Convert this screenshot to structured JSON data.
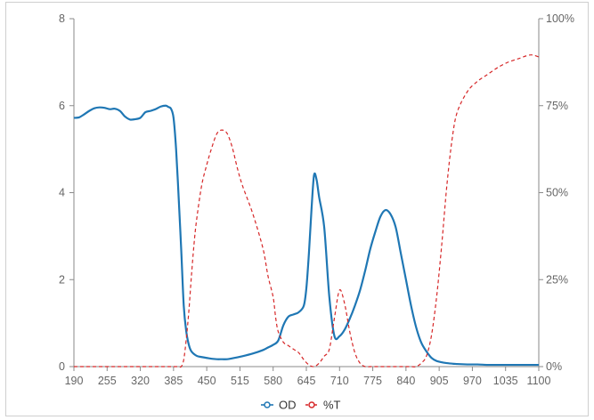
{
  "chart_data": {
    "type": "line",
    "x_ticks": [
      "190",
      "255",
      "320",
      "385",
      "450",
      "515",
      "580",
      "645",
      "710",
      "775",
      "840",
      "905",
      "970",
      "1035",
      "1100"
    ],
    "xlim": [
      190,
      1100
    ],
    "y_left": {
      "ticks": [
        "0",
        "2",
        "4",
        "6",
        "8"
      ],
      "lim": [
        0,
        8
      ]
    },
    "y_right": {
      "ticks": [
        "0%",
        "25%",
        "50%",
        "75%",
        "100%"
      ],
      "lim": [
        0,
        100
      ]
    },
    "grid": false,
    "legend_position": "bottom-center",
    "series": [
      {
        "name": "OD",
        "axis": "left",
        "color": "#1f77b4",
        "style": "solid",
        "x": [
          190,
          200,
          210,
          220,
          230,
          240,
          250,
          260,
          270,
          280,
          290,
          300,
          310,
          320,
          330,
          340,
          350,
          360,
          370,
          375,
          380,
          385,
          390,
          395,
          400,
          405,
          410,
          415,
          420,
          430,
          440,
          450,
          460,
          470,
          480,
          490,
          500,
          520,
          540,
          560,
          570,
          580,
          590,
          600,
          610,
          620,
          630,
          640,
          645,
          650,
          655,
          660,
          665,
          670,
          680,
          690,
          700,
          710,
          720,
          730,
          740,
          750,
          760,
          770,
          780,
          790,
          800,
          810,
          820,
          830,
          840,
          850,
          860,
          870,
          880,
          890,
          900,
          920,
          940,
          960,
          980,
          1000,
          1020,
          1040,
          1060,
          1080,
          1100
        ],
        "y": [
          5.72,
          5.73,
          5.8,
          5.88,
          5.94,
          5.96,
          5.95,
          5.92,
          5.93,
          5.88,
          5.75,
          5.68,
          5.69,
          5.72,
          5.85,
          5.88,
          5.92,
          5.98,
          6.0,
          5.97,
          5.93,
          5.72,
          5.0,
          3.9,
          2.7,
          1.4,
          0.8,
          0.5,
          0.35,
          0.25,
          0.22,
          0.2,
          0.18,
          0.17,
          0.17,
          0.17,
          0.19,
          0.24,
          0.3,
          0.38,
          0.44,
          0.5,
          0.6,
          0.95,
          1.15,
          1.2,
          1.25,
          1.4,
          1.8,
          2.6,
          3.6,
          4.4,
          4.3,
          3.9,
          3.2,
          1.6,
          0.7,
          0.7,
          0.85,
          1.1,
          1.4,
          1.75,
          2.2,
          2.7,
          3.1,
          3.45,
          3.6,
          3.5,
          3.2,
          2.6,
          2.0,
          1.4,
          0.9,
          0.55,
          0.35,
          0.2,
          0.13,
          0.08,
          0.06,
          0.05,
          0.05,
          0.04,
          0.04,
          0.04,
          0.04,
          0.04,
          0.04
        ]
      },
      {
        "name": "%T",
        "axis": "right",
        "color": "#d62728",
        "style": "dashed",
        "x": [
          190,
          250,
          300,
          350,
          380,
          385,
          390,
          395,
          400,
          405,
          410,
          415,
          420,
          425,
          430,
          440,
          450,
          460,
          470,
          480,
          490,
          500,
          510,
          520,
          540,
          560,
          570,
          580,
          585,
          590,
          600,
          610,
          620,
          630,
          640,
          650,
          660,
          670,
          680,
          690,
          700,
          710,
          720,
          730,
          740,
          750,
          760,
          770,
          780,
          790,
          800,
          810,
          820,
          830,
          840,
          850,
          860,
          870,
          880,
          890,
          900,
          910,
          920,
          930,
          940,
          960,
          980,
          1000,
          1020,
          1040,
          1060,
          1080,
          1090,
          1100
        ],
        "y": [
          0,
          0,
          0,
          0,
          0,
          0,
          0,
          0,
          0,
          2,
          8,
          16,
          26,
          35,
          42,
          52,
          58,
          63,
          67,
          68,
          67,
          63,
          57,
          52,
          44,
          34,
          26,
          20,
          14,
          10,
          7,
          6,
          5,
          4,
          2,
          0.5,
          0,
          1,
          3,
          5,
          14,
          22,
          18,
          10,
          4,
          1,
          0,
          0,
          0,
          0,
          0,
          0,
          0,
          0,
          0,
          0,
          0,
          1,
          3,
          9,
          20,
          35,
          52,
          65,
          73,
          79,
          82,
          84,
          86,
          87.5,
          88.5,
          89.5,
          89.5,
          89
        ]
      }
    ]
  }
}
